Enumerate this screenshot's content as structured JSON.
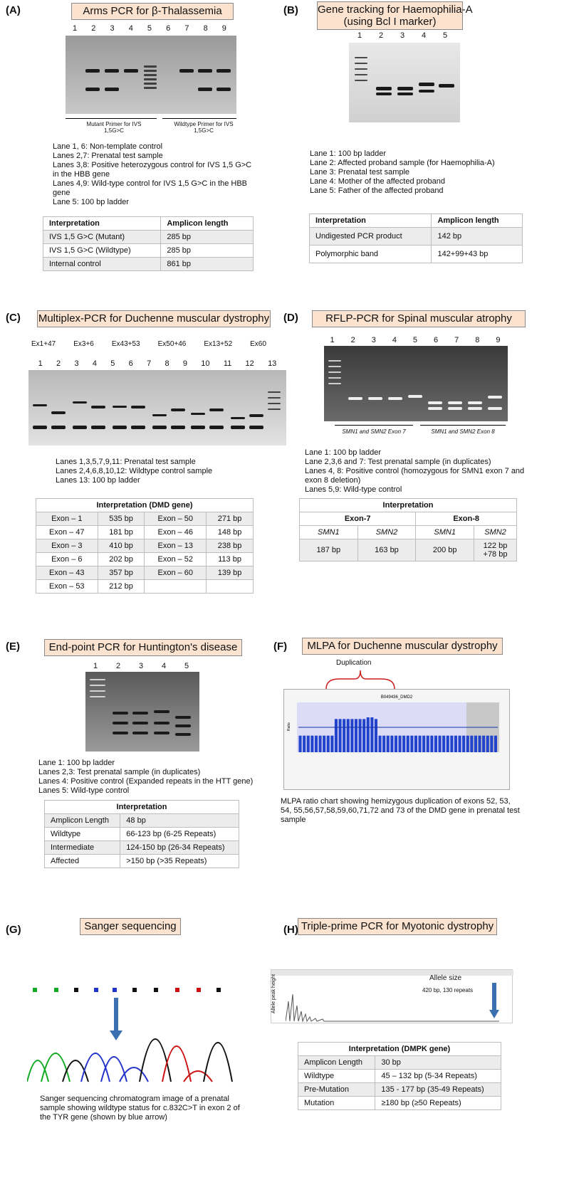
{
  "A": {
    "label": "(A)",
    "title": "Arms PCR for β-Thalassemia",
    "lanes": [
      "1",
      "2",
      "3",
      "4",
      "5",
      "6",
      "7",
      "8",
      "9"
    ],
    "mutant_label": "Mutant Primer for IVS 1,5G>C",
    "wildtype_label": "Wildtype Primer for IVS 1,5G>C",
    "notes": [
      "Lane 1, 6: Non-template control",
      "Lanes 2,7: Prenatal test sample",
      "Lanes 3,8: Positive heterozygous control for IVS 1,5 G>C in the HBB gene",
      "Lanes 4,9: Wild-type control for IVS 1,5 G>C in the HBB gene",
      "Lane 5: 100 bp ladder"
    ],
    "table": {
      "headers": [
        "Interpretation",
        "Amplicon length"
      ],
      "rows": [
        [
          "IVS 1,5 G>C (Mutant)",
          "285 bp"
        ],
        [
          "IVS 1,5 G>C (Wildtype)",
          "285 bp"
        ],
        [
          "Internal control",
          "861 bp"
        ]
      ]
    }
  },
  "B": {
    "label": "(B)",
    "title_line1": "Gene tracking for Haemophilia-A",
    "title_line2": "(using Bcl I marker)",
    "lanes": [
      "1",
      "2",
      "3",
      "4",
      "5"
    ],
    "notes": [
      "Lane 1: 100 bp ladder",
      "Lane 2: Affected proband sample (for Haemophilia-A)",
      "Lane 3: Prenatal test sample",
      "Lane 4: Mother of the affected proband",
      "Lane 5: Father of the affected proband"
    ],
    "table": {
      "headers": [
        "Interpretation",
        "Amplicon length"
      ],
      "rows": [
        [
          "Undigested PCR product",
          "142 bp"
        ],
        [
          "Polymorphic band",
          "142+99+43 bp"
        ]
      ]
    }
  },
  "C": {
    "label": "(C)",
    "title": "Multiplex-PCR for Duchenne muscular dystrophy",
    "exon_groups": [
      "Ex1+47",
      "Ex3+6",
      "Ex43+53",
      "Ex50+46",
      "Ex13+52",
      "Ex60"
    ],
    "lanes": [
      "1",
      "2",
      "3",
      "4",
      "5",
      "6",
      "7",
      "8",
      "9",
      "10",
      "11",
      "12",
      "13"
    ],
    "notes": [
      "Lanes 1,3,5,7,9,11: Prenatal test sample",
      "Lanes 2,4,6,8,10,12: Wildtype control sample",
      "Lanes 13: 100 bp ladder"
    ],
    "table": {
      "header": "Interpretation (DMD gene)",
      "rows": [
        [
          "Exon – 1",
          "535 bp",
          "Exon – 50",
          "271 bp"
        ],
        [
          "Exon – 47",
          "181 bp",
          "Exon – 46",
          "148 bp"
        ],
        [
          "Exon – 3",
          "410 bp",
          "Exon – 13",
          "238 bp"
        ],
        [
          "Exon – 6",
          "202 bp",
          "Exon – 52",
          "113 bp"
        ],
        [
          "Exon – 43",
          "357 bp",
          "Exon – 60",
          "139 bp"
        ],
        [
          "Exon – 53",
          "212 bp",
          "",
          ""
        ]
      ]
    }
  },
  "D": {
    "label": "(D)",
    "title": "RFLP-PCR for Spinal muscular atrophy",
    "lanes": [
      "1",
      "2",
      "3",
      "4",
      "5",
      "6",
      "7",
      "8",
      "9"
    ],
    "exon7_label": "SMN1 and SMN2 Exon 7",
    "exon8_label": "SMN1 and SMN2 Exon 8",
    "notes": [
      "Lane 1: 100 bp ladder",
      "Lane 2,3,6 and 7: Test prenatal sample (in duplicates)",
      "Lanes 4, 8: Positive control (homozygous for SMN1 exon 7 and exon 8 deletion)",
      "Lanes 5,9: Wild-type control"
    ],
    "table": {
      "header": "Interpretation",
      "groups": [
        "Exon-7",
        "Exon-8"
      ],
      "subheaders": [
        "SMN1",
        "SMN2",
        "SMN1",
        "SMN2"
      ],
      "values": [
        "187 bp",
        "163 bp",
        "200 bp",
        "122 bp +78 bp"
      ]
    }
  },
  "E": {
    "label": "(E)",
    "title": "End-point PCR for Huntington's disease",
    "lanes": [
      "1",
      "2",
      "3",
      "4",
      "5"
    ],
    "notes": [
      "Lane 1: 100 bp ladder",
      "Lanes 2,3: Test prenatal sample (in duplicates)",
      "Lanes 4: Positive control (Expanded repeats in the HTT gene)",
      "Lanes 5: Wild-type control"
    ],
    "table": {
      "header": "Interpretation",
      "rows": [
        [
          "Amplicon Length",
          "48 bp"
        ],
        [
          "Wildtype",
          "66-123 bp (6-25 Repeats)"
        ],
        [
          "Intermediate",
          "124-150 bp (26-34 Repeats)"
        ],
        [
          "Affected",
          ">150 bp (>35 Repeats)"
        ]
      ]
    }
  },
  "F": {
    "label": "(F)",
    "title": "MLPA for Duchenne muscular dystrophy",
    "dup_label": "Duplication",
    "chart_title": "B049436_DMD2",
    "caption": "MLPA ratio chart showing hemizygous duplication of exons 52, 53, 54, 55,56,57,58,59,60,71,72 and 73 of the DMD gene in prenatal test sample",
    "chart_data": {
      "type": "bar",
      "title": "B049436_DMD2",
      "ylabel": "Ratio",
      "values": [
        1.0,
        1.0,
        1.0,
        1.0,
        1.0,
        1.0,
        1.0,
        1.0,
        1.0,
        2.0,
        2.0,
        2.0,
        2.0,
        2.0,
        2.0,
        2.0,
        2.0,
        2.1,
        2.1,
        2.0,
        1.0,
        1.0,
        1.0,
        1.0,
        1.0,
        1.0,
        1.0,
        1.0,
        1.0,
        1.0,
        1.0,
        1.0,
        1.0,
        1.0,
        1.0,
        1.0,
        1.0,
        1.0,
        1.0,
        1.0,
        1.0,
        1.0,
        1.0,
        1.0,
        1.0,
        1.0,
        1.0,
        1.0,
        1.0,
        1.0
      ],
      "ylim": [
        0,
        3
      ]
    }
  },
  "G": {
    "label": "(G)",
    "title": "Sanger sequencing",
    "caption": "Sanger sequencing chromatogram image of a prenatal sample showing wildtype status for c.832C>T in exon 2 of the TYR gene (shown by blue arrow)"
  },
  "H": {
    "label": "(H)",
    "title": "Triple-prime PCR for Myotonic dystrophy",
    "allele_size": "Allele size",
    "peak_label": "Allele peak height",
    "annot": "420 bp, 130 repeats",
    "table": {
      "header": "Interpretation (DMPK gene)",
      "rows": [
        [
          "Amplicon Length",
          "30 bp"
        ],
        [
          "Wildtype",
          "45 – 132 bp (5-34 Repeats)"
        ],
        [
          "Pre-Mutation",
          "135 - 177 bp (35-49 Repeats)"
        ],
        [
          "Mutation",
          "≥180 bp (≥50 Repeats)"
        ]
      ]
    }
  },
  "colors": {
    "title_bg": "#fbe3d0",
    "mlpa_bar": "#2244cc",
    "arrow": "#3a6fb0"
  }
}
